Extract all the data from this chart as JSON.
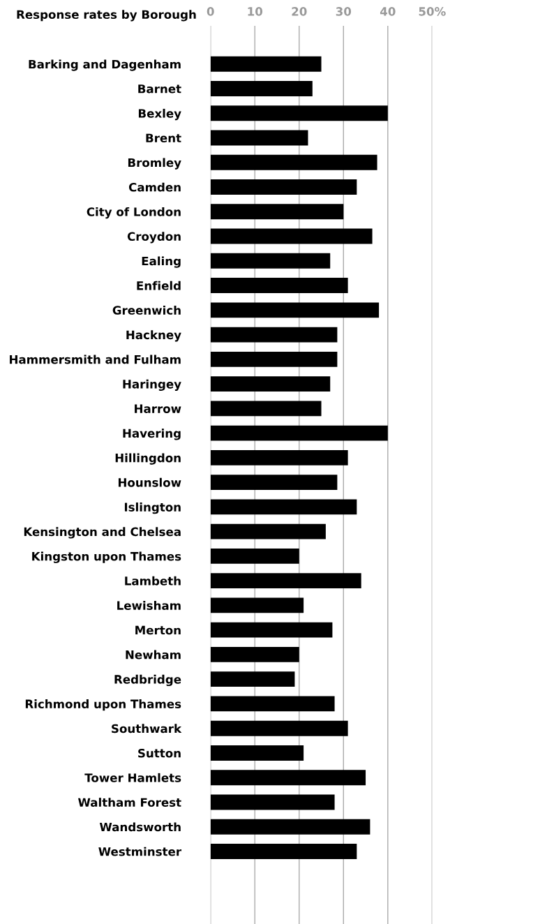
{
  "chart_data": {
    "type": "bar",
    "orientation": "horizontal",
    "title": "Response rates by Borough",
    "categories": [
      "Barking and Dagenham",
      "Barnet",
      "Bexley",
      "Brent",
      "Bromley",
      "Camden",
      "City of London",
      "Croydon",
      "Ealing",
      "Enfield",
      "Greenwich",
      "Hackney",
      "Hammersmith and Fulham",
      "Haringey",
      "Harrow",
      "Havering",
      "Hillingdon",
      "Hounslow",
      "Islington",
      "Kensington and Chelsea",
      "Kingston upon Thames",
      "Lambeth",
      "Lewisham",
      "Merton",
      "Newham",
      "Redbridge",
      "Richmond upon Thames",
      "Southwark",
      "Sutton",
      "Tower Hamlets",
      "Waltham Forest",
      "Wandsworth",
      "Westminster"
    ],
    "values": [
      25,
      23,
      40,
      22,
      37.6,
      33,
      30,
      36.5,
      27,
      31,
      38,
      28.6,
      28.6,
      27,
      25,
      40,
      31,
      28.6,
      33,
      26,
      20,
      34,
      21,
      27.5,
      20,
      19,
      28,
      31,
      21,
      35,
      28,
      36,
      33
    ],
    "color": "#000000",
    "xlim": [
      0,
      50
    ],
    "xticks": [
      0,
      10,
      20,
      30,
      40,
      {
        "value": 50,
        "label": "50%"
      }
    ],
    "grid": "x"
  }
}
